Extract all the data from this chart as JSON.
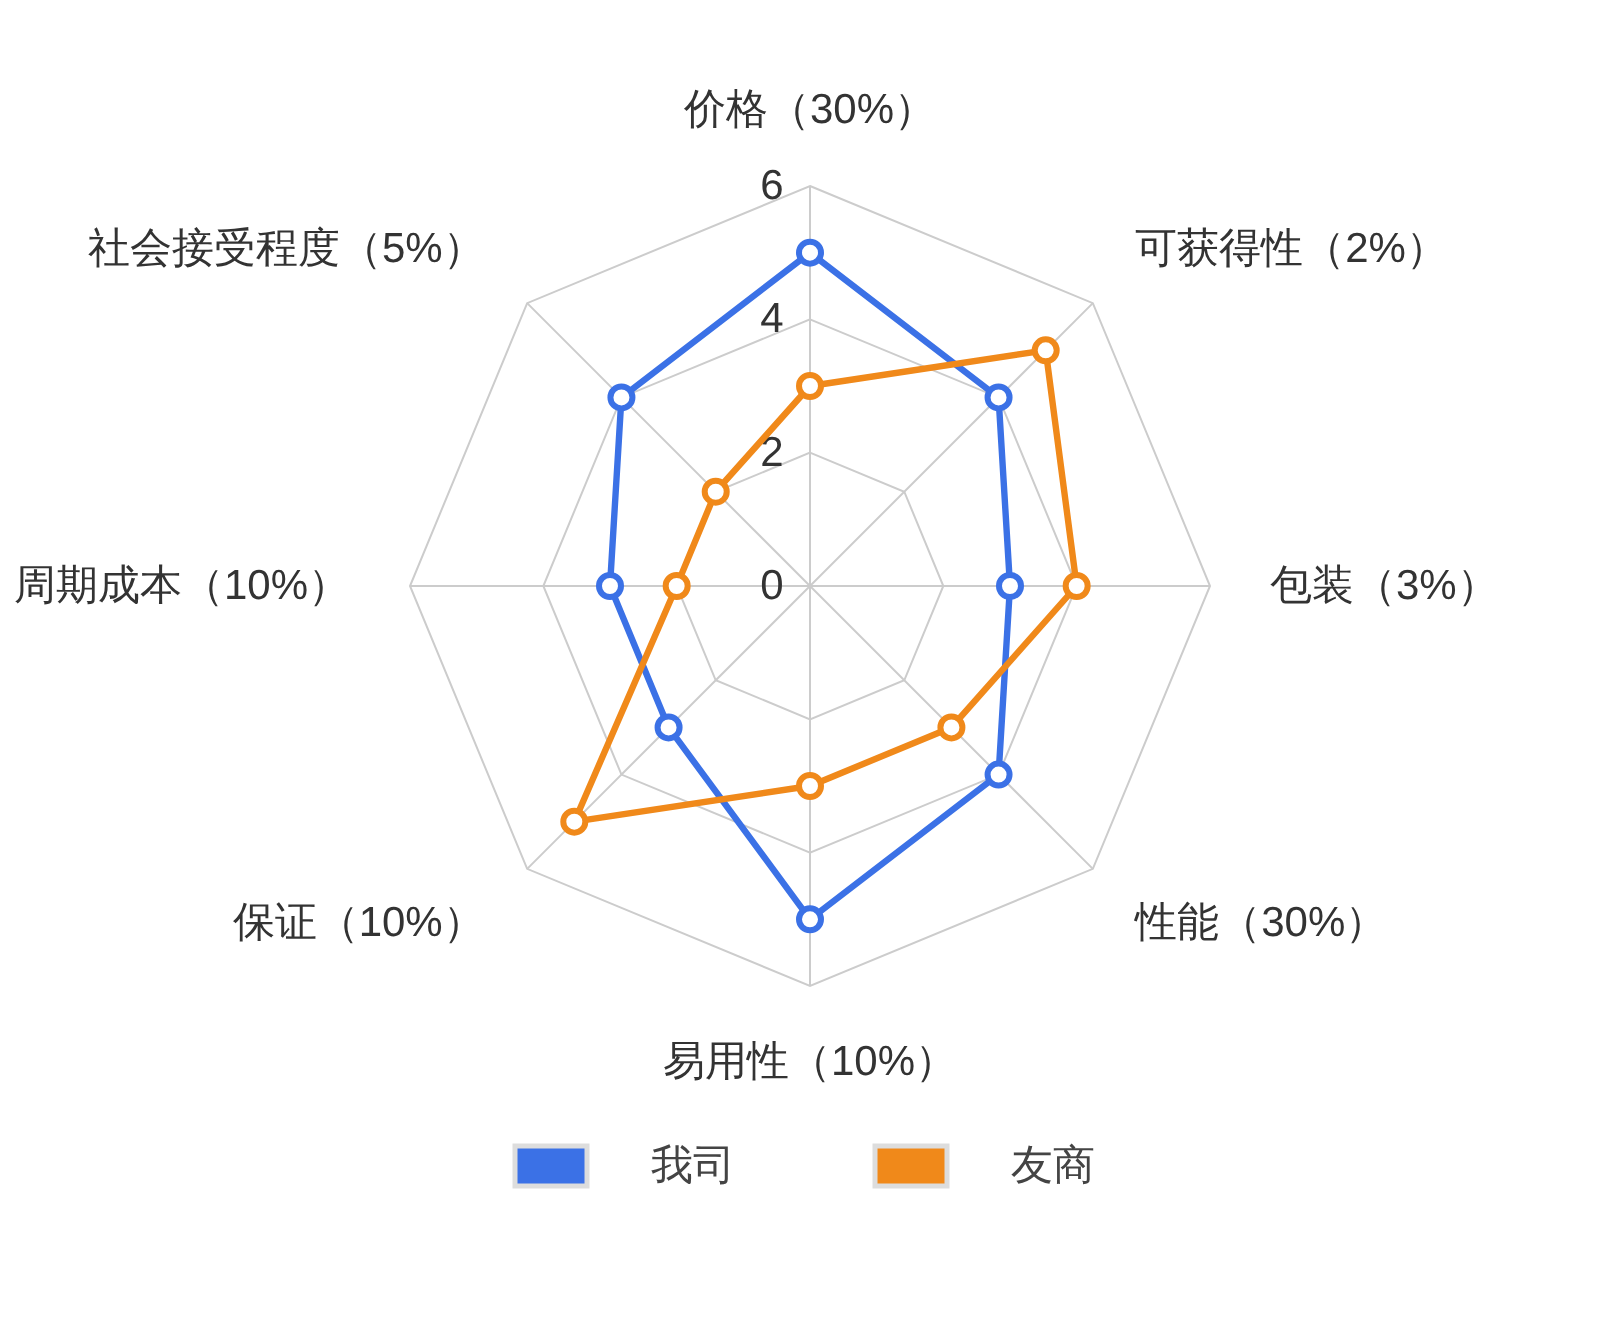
{
  "chart_data": {
    "type": "radar",
    "categories": [
      "价格（30%）",
      "可获得性（2%）",
      "包装（3%）",
      "性能（30%）",
      "易用性（10%）",
      "保证（10%）",
      "周期成本（10%）",
      "社会接受程度（5%）"
    ],
    "series": [
      {
        "name": "我司",
        "color": "#3b71e6",
        "values": [
          5,
          4,
          3,
          4,
          5,
          3,
          3,
          4
        ]
      },
      {
        "name": "友商",
        "color": "#f0891a",
        "values": [
          3,
          5,
          4,
          3,
          3,
          5,
          2,
          2
        ]
      }
    ],
    "ylim": [
      0,
      6
    ],
    "yticks": [
      0,
      2,
      4,
      6
    ],
    "grid": true,
    "legend": "bottom",
    "marker": "circle",
    "line_style": "solid"
  }
}
